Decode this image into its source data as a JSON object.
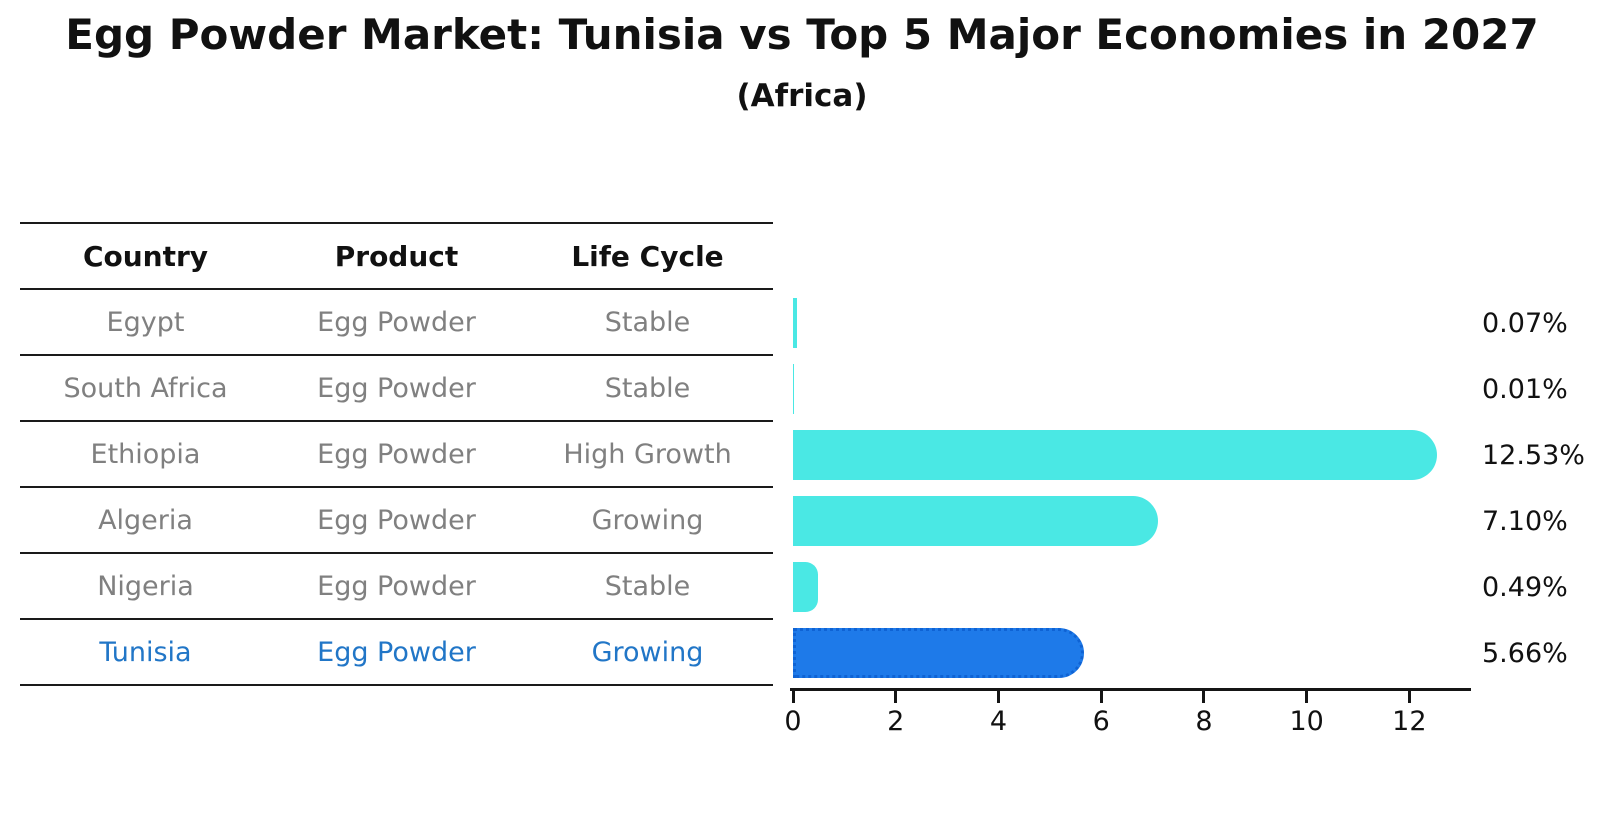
{
  "title": "Egg Powder Market: Tunisia vs Top 5 Major Economies in 2027",
  "subtitle": "(Africa)",
  "table": {
    "headers": [
      "Country",
      "Product",
      "Life Cycle"
    ],
    "rows": [
      {
        "country": "Egypt",
        "product": "Egg Powder",
        "life_cycle": "Stable",
        "value_label": "0.07%",
        "highlighted": false
      },
      {
        "country": "South Africa",
        "product": "Egg Powder",
        "life_cycle": "Stable",
        "value_label": "0.01%",
        "highlighted": false
      },
      {
        "country": "Ethiopia",
        "product": "Egg Powder",
        "life_cycle": "High Growth",
        "value_label": "12.53%",
        "highlighted": false
      },
      {
        "country": "Algeria",
        "product": "Egg Powder",
        "life_cycle": "Growing",
        "value_label": "7.10%",
        "highlighted": false
      },
      {
        "country": "Nigeria",
        "product": "Egg Powder",
        "life_cycle": "Stable",
        "value_label": "0.49%",
        "highlighted": false
      },
      {
        "country": "Tunisia",
        "product": "Egg Powder",
        "life_cycle": "Growing",
        "value_label": "5.66%",
        "highlighted": true
      }
    ]
  },
  "chart_data": {
    "type": "bar",
    "orientation": "horizontal",
    "title": "Egg Powder Market: Tunisia vs Top 5 Major Economies in 2027",
    "subtitle": "(Africa)",
    "categories": [
      "Egypt",
      "South Africa",
      "Ethiopia",
      "Algeria",
      "Nigeria",
      "Tunisia"
    ],
    "values": [
      0.07,
      0.01,
      12.53,
      7.1,
      0.49,
      5.66
    ],
    "value_labels": [
      "0.07%",
      "0.01%",
      "12.53%",
      "7.10%",
      "0.49%",
      "5.66%"
    ],
    "xlabel": "",
    "ylabel": "",
    "xlim": [
      0,
      13.2
    ],
    "xticks": [
      0,
      2,
      4,
      6,
      8,
      10,
      12
    ],
    "grid": false,
    "legend": false,
    "bar_color": "#4ae8e4",
    "highlight_index": 5,
    "highlight_color": "#1e7ae9",
    "highlight_border_color": "#0f63d4",
    "highlight_text_color": "#2176c7",
    "row_text_color": "#808080"
  }
}
